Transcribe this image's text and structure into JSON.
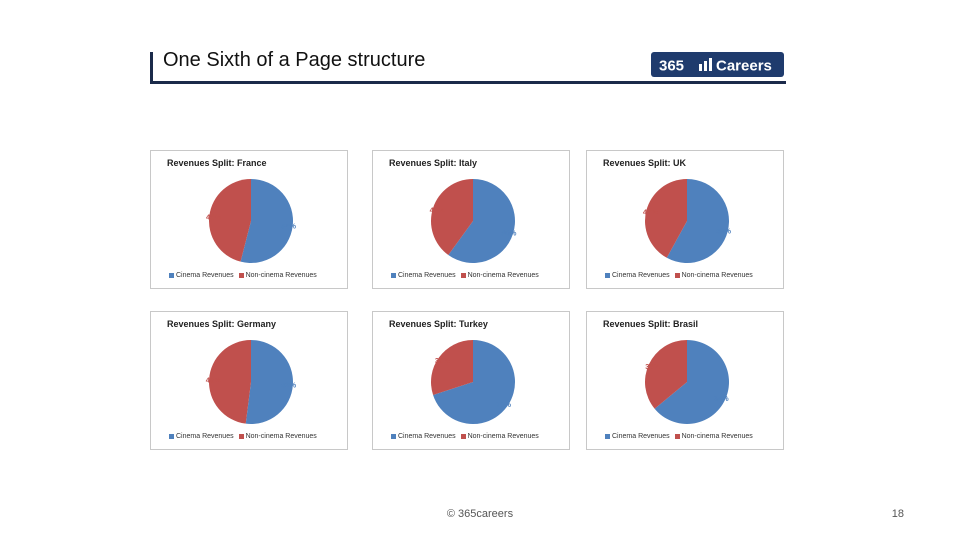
{
  "header": {
    "title": "One Sixth of a Page structure"
  },
  "logo": {
    "text": "365 Careers",
    "number": "365",
    "word": "Careers"
  },
  "colors": {
    "cinema": "#4f81bd",
    "noncinema": "#c0504d",
    "navy": "#1b2a4a",
    "logo_bg": "#1f3b6d"
  },
  "legend": {
    "cinema": "Cinema Revenues",
    "noncinema": "Non-cinema Revenues"
  },
  "chart_data": [
    {
      "type": "pie",
      "title": "Revenues Split: France",
      "categories": [
        "Cinema Revenues",
        "Non-cinema Revenues"
      ],
      "values": [
        54,
        46
      ],
      "labels": [
        "54%",
        "46%"
      ]
    },
    {
      "type": "pie",
      "title": "Revenues Split: Italy",
      "categories": [
        "Cinema Revenues",
        "Non-cinema Revenues"
      ],
      "values": [
        60,
        40
      ],
      "labels": [
        "60%",
        "40%"
      ]
    },
    {
      "type": "pie",
      "title": "Revenues Split: UK",
      "categories": [
        "Cinema Revenues",
        "Non-cinema Revenues"
      ],
      "values": [
        58,
        42
      ],
      "labels": [
        "58%",
        "42%"
      ]
    },
    {
      "type": "pie",
      "title": "Revenues Split: Germany",
      "categories": [
        "Cinema Revenues",
        "Non-cinema Revenues"
      ],
      "values": [
        52,
        48
      ],
      "labels": [
        "52%",
        "48%"
      ]
    },
    {
      "type": "pie",
      "title": "Revenues Split: Turkey",
      "categories": [
        "Cinema Revenues",
        "Non-cinema Revenues"
      ],
      "values": [
        70,
        30
      ],
      "labels": [
        "70%",
        "30%"
      ]
    },
    {
      "type": "pie",
      "title": "Revenues Split: Brasil",
      "categories": [
        "Cinema Revenues",
        "Non-cinema Revenues"
      ],
      "values": [
        64,
        36
      ],
      "labels": [
        "64%",
        "36%"
      ]
    }
  ],
  "footer": {
    "copyright": "© 365careers",
    "page_number": "18"
  }
}
